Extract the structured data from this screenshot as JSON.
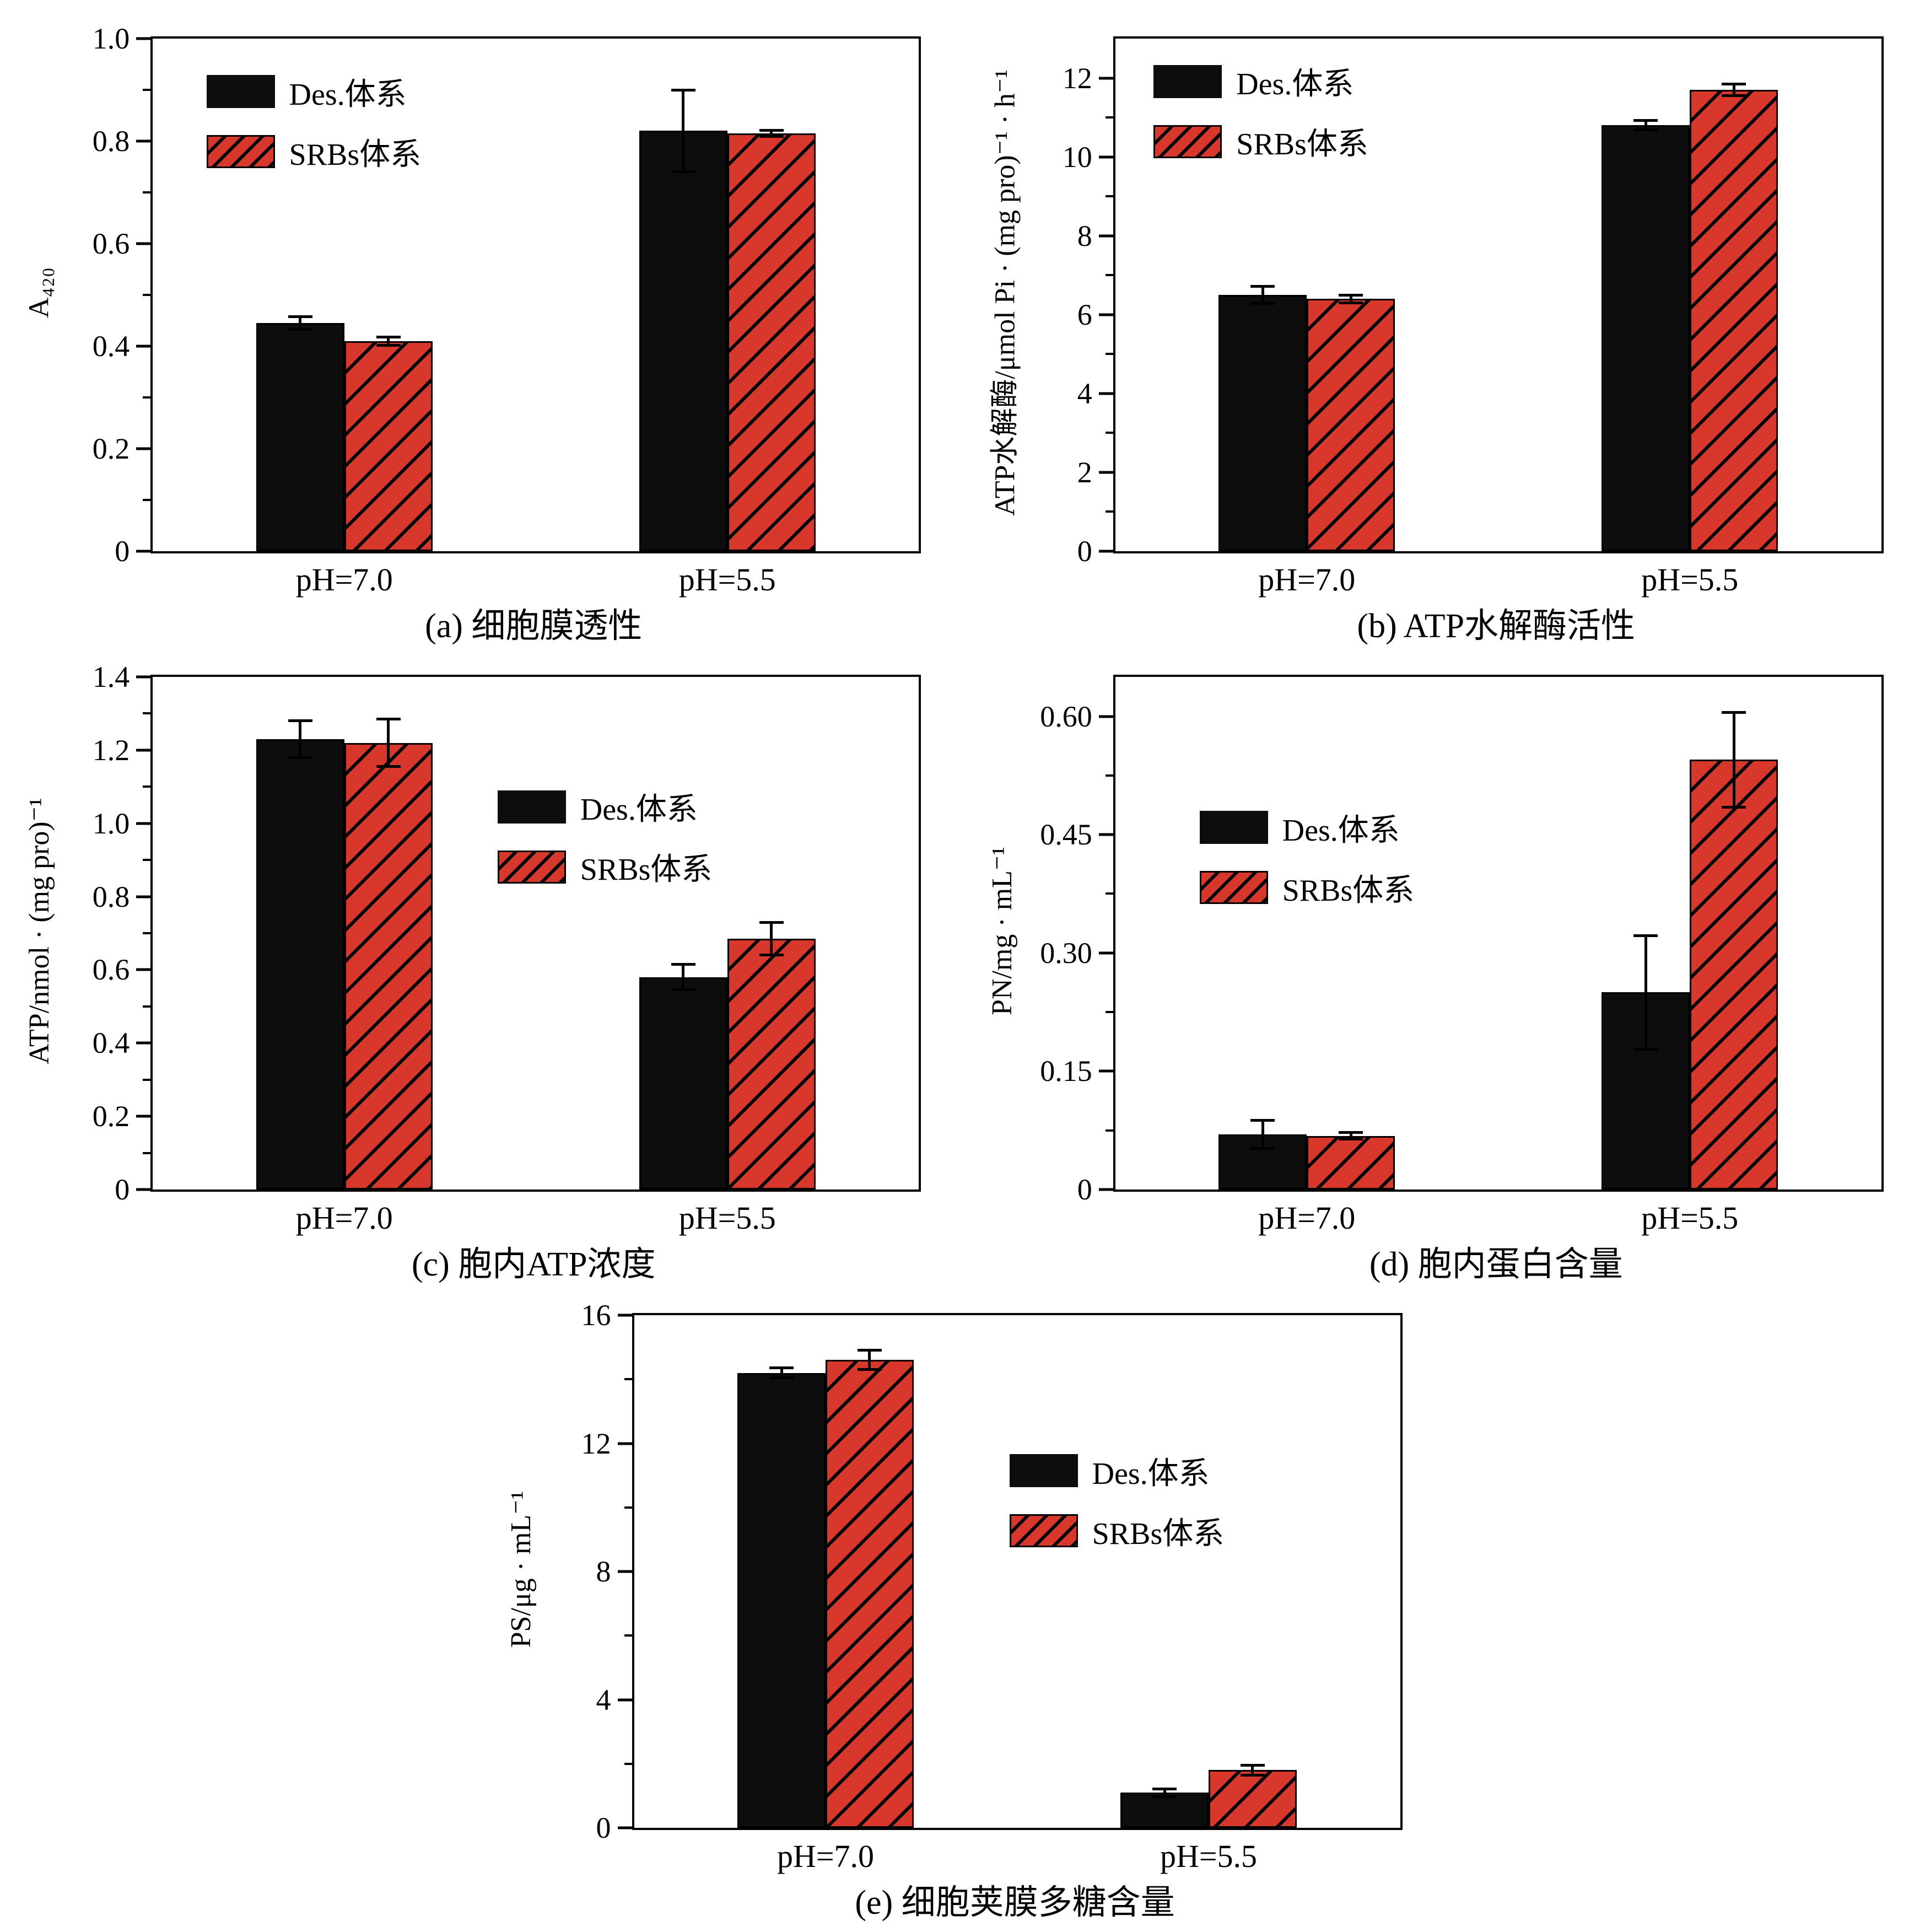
{
  "page": {
    "background": "#ffffff"
  },
  "colors": {
    "des": "#0d0d0d",
    "srbs": "#d8382c",
    "axis": "#000000"
  },
  "chart_data": [
    {
      "id": "a",
      "type": "bar",
      "caption": "(a) 细胞膜透性",
      "ylabel": "A₄₂₀",
      "xlabel": "",
      "categories": [
        "pH=7.0",
        "pH=5.5"
      ],
      "series": [
        {
          "name": "Des.体系",
          "style": "solid-black",
          "values": [
            0.445,
            0.82
          ],
          "errors": [
            0.012,
            0.08
          ]
        },
        {
          "name": "SRBs体系",
          "style": "hatched-red",
          "values": [
            0.41,
            0.815
          ],
          "errors": [
            0.008,
            0.006
          ]
        }
      ],
      "ylim": [
        0,
        1.0
      ],
      "tick_values": [
        0,
        0.2,
        0.4,
        0.6,
        0.8,
        1.0
      ],
      "tick_labels": [
        "0",
        "0.2",
        "0.4",
        "0.6",
        "0.8",
        "1.0"
      ],
      "minor_step": 0.1,
      "grid": "off",
      "legend_pos": {
        "left": "7%",
        "top": "6%"
      }
    },
    {
      "id": "b",
      "type": "bar",
      "caption": "(b) ATP水解酶活性",
      "ylabel": "ATP水解酶/μmol Pi · (mg pro)⁻¹ · h⁻¹",
      "xlabel": "",
      "categories": [
        "pH=7.0",
        "pH=5.5"
      ],
      "series": [
        {
          "name": "Des.体系",
          "style": "solid-black",
          "values": [
            6.5,
            10.8
          ],
          "errors": [
            0.22,
            0.12
          ]
        },
        {
          "name": "SRBs体系",
          "style": "hatched-red",
          "values": [
            6.4,
            11.7
          ],
          "errors": [
            0.1,
            0.15
          ]
        }
      ],
      "ylim": [
        0,
        13
      ],
      "tick_values": [
        0,
        2,
        4,
        6,
        8,
        10,
        12
      ],
      "tick_labels": [
        "0",
        "2",
        "4",
        "6",
        "8",
        "10",
        "12"
      ],
      "minor_step": 1,
      "grid": "off",
      "legend_pos": {
        "left": "5%",
        "top": "4%"
      }
    },
    {
      "id": "c",
      "type": "bar",
      "caption": "(c) 胞内ATP浓度",
      "ylabel": "ATP/nmol · (mg pro)⁻¹",
      "xlabel": "",
      "categories": [
        "pH=7.0",
        "pH=5.5"
      ],
      "series": [
        {
          "name": "Des.体系",
          "style": "solid-black",
          "values": [
            1.23,
            0.58
          ],
          "errors": [
            0.05,
            0.035
          ]
        },
        {
          "name": "SRBs体系",
          "style": "hatched-red",
          "values": [
            1.22,
            0.685
          ],
          "errors": [
            0.065,
            0.045
          ]
        }
      ],
      "ylim": [
        0,
        1.4
      ],
      "tick_values": [
        0,
        0.2,
        0.4,
        0.6,
        0.8,
        1.0,
        1.2,
        1.4
      ],
      "tick_labels": [
        "0",
        "0.2",
        "0.4",
        "0.6",
        "0.8",
        "1.0",
        "1.2",
        "1.4"
      ],
      "minor_step": 0.1,
      "grid": "off",
      "legend_pos": {
        "left": "45%",
        "top": "21%"
      }
    },
    {
      "id": "d",
      "type": "bar",
      "caption": "(d) 胞内蛋白含量",
      "ylabel": "PN/mg · mL⁻¹",
      "xlabel": "",
      "categories": [
        "pH=7.0",
        "pH=5.5"
      ],
      "series": [
        {
          "name": "Des.体系",
          "style": "solid-black",
          "values": [
            0.07,
            0.25
          ],
          "errors": [
            0.018,
            0.072
          ]
        },
        {
          "name": "SRBs体系",
          "style": "hatched-red",
          "values": [
            0.068,
            0.545
          ],
          "errors": [
            0.004,
            0.06
          ]
        }
      ],
      "ylim": [
        0,
        0.65
      ],
      "tick_values": [
        0,
        0.15,
        0.3,
        0.45,
        0.6
      ],
      "tick_labels": [
        "0",
        "0.15",
        "0.30",
        "0.45",
        "0.60"
      ],
      "minor_step": 0.075,
      "grid": "off",
      "legend_pos": {
        "left": "11%",
        "top": "25%"
      }
    },
    {
      "id": "e",
      "type": "bar",
      "caption": "(e) 细胞荚膜多糖含量",
      "ylabel": "PS/μg · mL⁻¹",
      "xlabel": "",
      "categories": [
        "pH=7.0",
        "pH=5.5"
      ],
      "series": [
        {
          "name": "Des.体系",
          "style": "solid-black",
          "values": [
            14.2,
            1.1
          ],
          "errors": [
            0.15,
            0.12
          ]
        },
        {
          "name": "SRBs体系",
          "style": "hatched-red",
          "values": [
            14.6,
            1.8
          ],
          "errors": [
            0.3,
            0.15
          ]
        }
      ],
      "ylim": [
        0,
        16
      ],
      "tick_values": [
        0,
        4,
        8,
        12,
        16
      ],
      "tick_labels": [
        "0",
        "4",
        "8",
        "12",
        "16"
      ],
      "minor_step": 2,
      "grid": "off",
      "legend_pos": {
        "left": "49%",
        "top": "26%"
      }
    }
  ]
}
